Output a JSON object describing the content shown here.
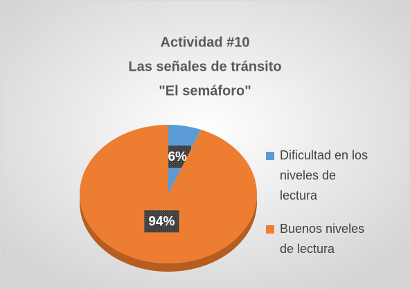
{
  "chart_data": {
    "type": "pie",
    "title": [
      "Actividad #10",
      "Las señales de tránsito",
      "\"El semáforo\""
    ],
    "categories": [
      "Dificultad en los niveles de lectura",
      "Buenos niveles de lectura"
    ],
    "values": [
      6,
      94
    ],
    "value_labels": [
      "6%",
      "94%"
    ],
    "colors": [
      "#5b9bd5",
      "#ed7d31"
    ],
    "legend": "right"
  }
}
